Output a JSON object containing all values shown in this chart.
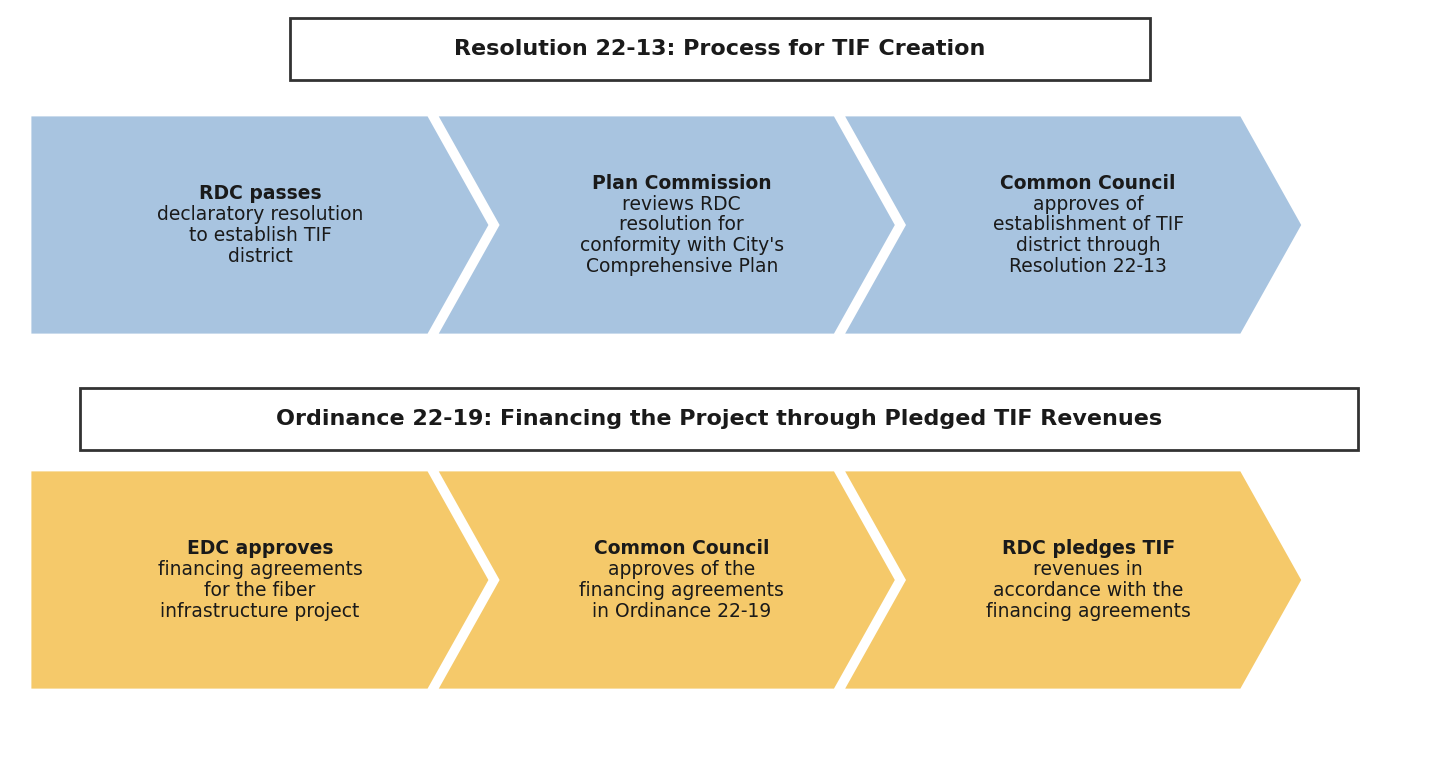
{
  "title1": "Resolution 22-13: Process for TIF Creation",
  "title2": "Ordinance 22-19: Financing the Project through Pledged TIF Revenues",
  "blue_color": "#A8C4E0",
  "yellow_color": "#F5C96A",
  "background_color": "#FFFFFF",
  "title_box_edge": "#333333",
  "text_color": "#1a1a1a",
  "row1_arrows": [
    {
      "lines": [
        "RDC passes",
        "declaratory resolution",
        "to establish TIF",
        "district"
      ],
      "bold_lines": [
        0
      ]
    },
    {
      "lines": [
        "Plan Commission",
        "reviews RDC",
        "resolution for",
        "conformity with City's",
        "Comprehensive Plan"
      ],
      "bold_lines": [
        0
      ]
    },
    {
      "lines": [
        "Common Council",
        "approves of",
        "establishment of TIF",
        "district through",
        "Resolution 22-13"
      ],
      "bold_lines": [
        0
      ]
    }
  ],
  "row2_arrows": [
    {
      "lines": [
        "EDC approves",
        "financing agreements",
        "for the fiber",
        "infrastructure project"
      ],
      "bold_lines": [
        0
      ]
    },
    {
      "lines": [
        "Common Council",
        "approves of the",
        "financing agreements",
        "in Ordinance 22-19"
      ],
      "bold_lines": [
        0
      ]
    },
    {
      "lines": [
        "RDC pledges TIF",
        "revenues in",
        "accordance with the",
        "financing agreements"
      ],
      "bold_lines": [
        0
      ]
    }
  ],
  "row1_bold_words": [
    "RDC",
    "Plan Commission",
    "Common Council"
  ],
  "row2_bold_words": [
    "EDC",
    "Common Council",
    "RDC"
  ]
}
